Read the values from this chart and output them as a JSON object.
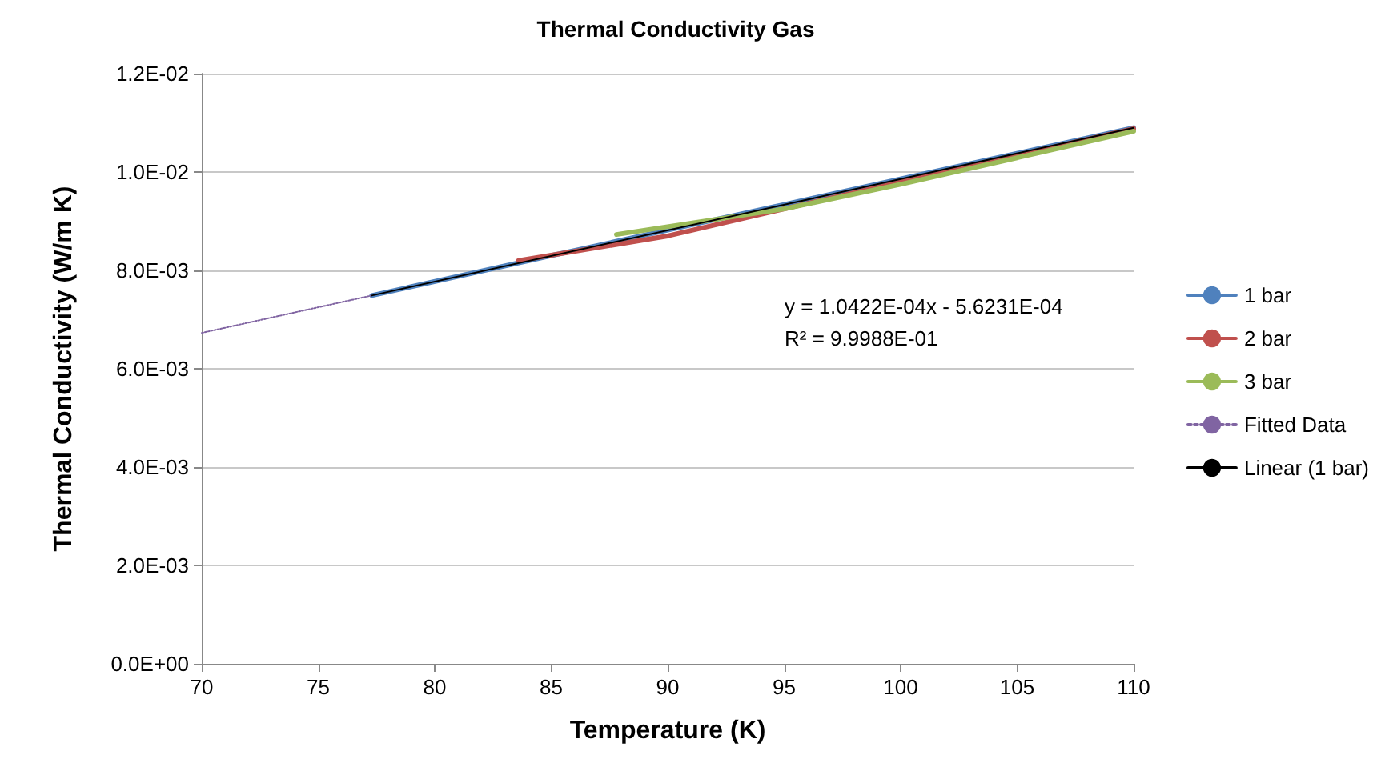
{
  "chart_data": {
    "type": "line",
    "title": "Thermal Conductivity Gas",
    "xlabel": "Temperature (K)",
    "ylabel": "Thermal Conductivity (W/m K)",
    "annotations": [
      "y = 1.0422E-04x - 5.6231E-04",
      "R² = 9.9988E-01"
    ],
    "series": [
      {
        "name": "1 bar",
        "color": "#4f81bd",
        "x": [
          77.3,
          85,
          95,
          110
        ],
        "values": [
          0.00749,
          0.0083,
          0.00934,
          0.0109
        ]
      },
      {
        "name": "2 bar",
        "color": "#c0504d",
        "x": [
          83.6,
          90,
          100,
          110
        ],
        "values": [
          0.0082,
          0.0087,
          0.0098,
          0.01088
        ]
      },
      {
        "name": "3 bar",
        "color": "#9bbb59",
        "x": [
          87.8,
          95,
          100,
          110
        ],
        "values": [
          0.00873,
          0.00925,
          0.00975,
          0.01083
        ]
      },
      {
        "name": "Fitted Data",
        "color": "#8064a2",
        "line_style": "dotted",
        "x": [
          70,
          77.3
        ],
        "values": [
          0.00673,
          0.00749
        ]
      },
      {
        "name": "Linear (1 bar)",
        "color": "#000000",
        "x": [
          77.3,
          110
        ],
        "values": [
          0.00749,
          0.0109
        ]
      }
    ],
    "xlim": [
      70,
      110
    ],
    "xticks": [
      70,
      75,
      80,
      85,
      90,
      95,
      100,
      105,
      110
    ],
    "ylim": [
      0,
      0.012
    ],
    "yticks": [
      {
        "value": 0,
        "label": "0.0E+00"
      },
      {
        "value": 0.002,
        "label": "2.0E-03"
      },
      {
        "value": 0.004,
        "label": "4.0E-03"
      },
      {
        "value": 0.006,
        "label": "6.0E-03"
      },
      {
        "value": 0.008,
        "label": "8.0E-03"
      },
      {
        "value": 0.01,
        "label": "1.0E-02"
      },
      {
        "value": 0.012,
        "label": "1.2E-02"
      }
    ],
    "grid": "y",
    "legend": "right",
    "marker": "none",
    "line_style": "solid"
  }
}
